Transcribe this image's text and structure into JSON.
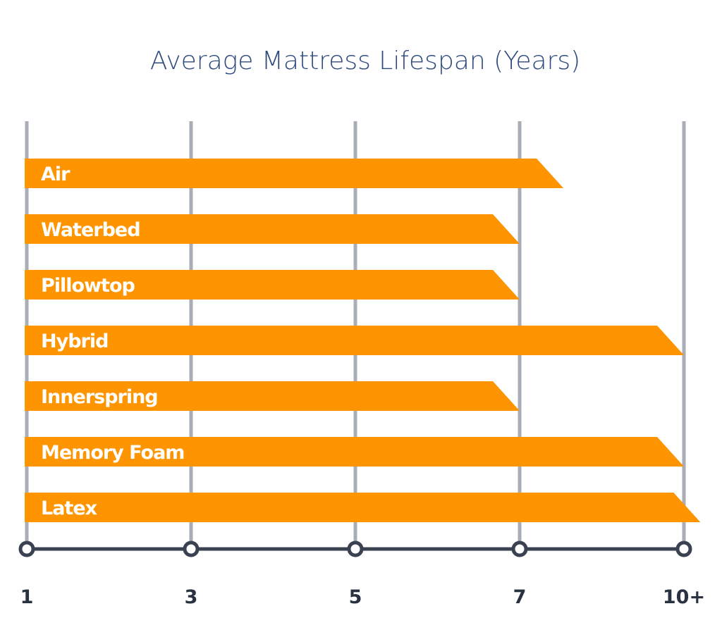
{
  "chart_data": {
    "type": "bar",
    "orientation": "horizontal",
    "title": "Average Mattress Lifespan (Years)",
    "categories": [
      "Air",
      "Waterbed",
      "Pillowtop",
      "Hybrid",
      "Innerspring",
      "Memory Foam",
      "Latex"
    ],
    "values": [
      7.8,
      7,
      7,
      10,
      7,
      10,
      10.3
    ],
    "color": "#fd9400",
    "xlim": [
      1,
      10.5
    ],
    "xticks": [
      1,
      3,
      5,
      7,
      {
        "value": 10,
        "label": "10+"
      }
    ],
    "grid": true
  }
}
